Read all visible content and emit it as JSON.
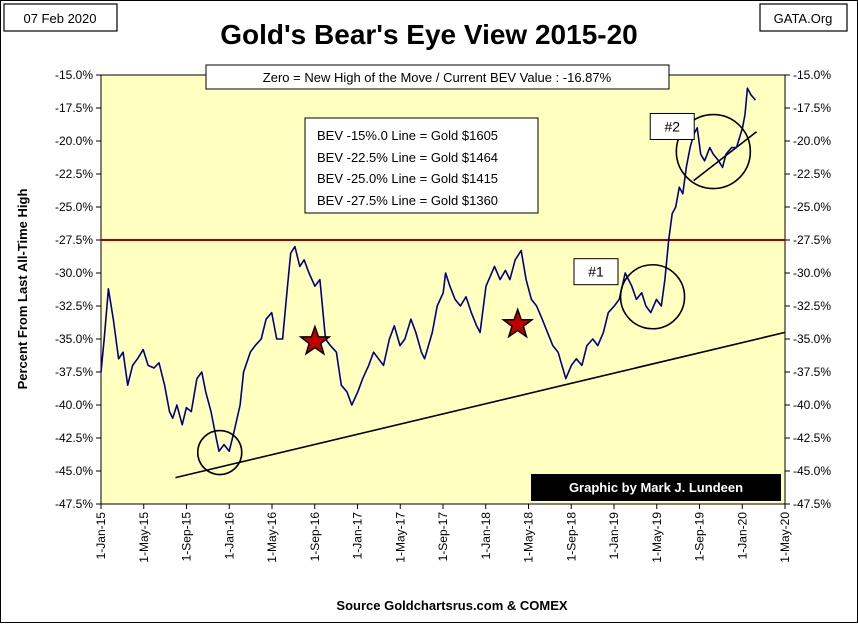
{
  "header": {
    "date_label": "07 Feb 2020",
    "source_tag": "GATA.Org",
    "title": "Gold's Bear's Eye View 2015-20",
    "subtitle": "Zero = New High of the Move / Current  BEV Value : -16.87%"
  },
  "footer": {
    "source": "Source Goldchartsrus.com & COMEX",
    "credit": "Graphic by Mark J. Lundeen"
  },
  "colors": {
    "plot_bg": "#ffffc0",
    "series_line": "#000080",
    "ref_line": "#a00000",
    "star_fill": "#c00000",
    "credit_bg": "#000000",
    "credit_text": "#ffffff"
  },
  "chart_data": {
    "type": "line",
    "title": "Gold's Bear's Eye View 2015-20",
    "ylabel": "Percent  From Last  All-Time High",
    "xlabel": "",
    "ylim": [
      -47.5,
      -15.0
    ],
    "xlim": [
      "2015-01-01",
      "2020-05-01"
    ],
    "y_ticks": [
      "-15.0%",
      "-17.5%",
      "-20.0%",
      "-22.5%",
      "-25.0%",
      "-27.5%",
      "-30.0%",
      "-32.5%",
      "-35.0%",
      "-37.5%",
      "-40.0%",
      "-42.5%",
      "-45.0%",
      "-47.5%"
    ],
    "x_ticks": [
      "1-Jan-15",
      "1-May-15",
      "1-Sep-15",
      "1-Jan-16",
      "1-May-16",
      "1-Sep-16",
      "1-Jan-17",
      "1-May-17",
      "1-Sep-17",
      "1-Jan-18",
      "1-May-18",
      "1-Sep-18",
      "1-Jan-19",
      "1-May-19",
      "1-Sep-19",
      "1-Jan-20",
      "1-May-20"
    ],
    "grid": false,
    "series": [
      {
        "x": [
          "2015-01-01",
          "2015-01-10",
          "2015-01-22",
          "2015-02-05",
          "2015-02-20",
          "2015-03-05",
          "2015-03-18",
          "2015-04-01",
          "2015-04-15",
          "2015-05-01",
          "2015-05-15",
          "2015-06-01",
          "2015-06-15",
          "2015-07-01",
          "2015-07-15",
          "2015-07-24",
          "2015-08-05",
          "2015-08-20",
          "2015-09-01",
          "2015-09-15",
          "2015-10-01",
          "2015-10-15",
          "2015-10-26",
          "2015-11-10",
          "2015-11-25",
          "2015-12-03",
          "2015-12-17",
          "2016-01-01",
          "2016-01-15",
          "2016-02-01",
          "2016-02-11",
          "2016-03-01",
          "2016-03-15",
          "2016-04-01",
          "2016-04-15",
          "2016-05-01",
          "2016-05-15",
          "2016-06-01",
          "2016-06-15",
          "2016-06-24",
          "2016-07-06",
          "2016-07-20",
          "2016-08-01",
          "2016-08-15",
          "2016-09-01",
          "2016-09-15",
          "2016-10-01",
          "2016-10-15",
          "2016-11-01",
          "2016-11-15",
          "2016-12-01",
          "2016-12-15",
          "2017-01-01",
          "2017-01-15",
          "2017-02-01",
          "2017-02-15",
          "2017-03-01",
          "2017-03-15",
          "2017-04-01",
          "2017-04-15",
          "2017-05-01",
          "2017-05-15",
          "2017-06-01",
          "2017-06-15",
          "2017-07-01",
          "2017-07-10",
          "2017-08-01",
          "2017-08-15",
          "2017-09-01",
          "2017-09-08",
          "2017-09-20",
          "2017-10-05",
          "2017-10-20",
          "2017-11-05",
          "2017-11-20",
          "2017-12-05",
          "2017-12-15",
          "2018-01-01",
          "2018-01-25",
          "2018-02-10",
          "2018-02-25",
          "2018-03-10",
          "2018-03-25",
          "2018-04-11",
          "2018-04-25",
          "2018-05-10",
          "2018-05-25",
          "2018-06-10",
          "2018-06-25",
          "2018-07-10",
          "2018-07-25",
          "2018-08-16",
          "2018-09-01",
          "2018-09-15",
          "2018-10-01",
          "2018-10-15",
          "2018-11-01",
          "2018-11-15",
          "2018-12-01",
          "2018-12-15",
          "2019-01-01",
          "2019-01-15",
          "2019-02-01",
          "2019-02-20",
          "2019-03-05",
          "2019-03-20",
          "2019-04-01",
          "2019-04-15",
          "2019-05-01",
          "2019-05-15",
          "2019-05-25",
          "2019-06-05",
          "2019-06-15",
          "2019-06-25",
          "2019-07-05",
          "2019-07-15",
          "2019-07-25",
          "2019-08-05",
          "2019-08-15",
          "2019-08-25",
          "2019-09-04",
          "2019-09-15",
          "2019-09-30",
          "2019-10-10",
          "2019-10-25",
          "2019-11-05",
          "2019-11-15",
          "2019-12-01",
          "2019-12-15",
          "2020-01-01",
          "2020-01-08",
          "2020-01-15",
          "2020-01-25",
          "2020-02-07"
        ],
        "values": [
          -37.5,
          -35.0,
          -31.2,
          -33.5,
          -36.5,
          -36.0,
          -38.5,
          -37.0,
          -36.5,
          -35.8,
          -37.0,
          -37.2,
          -36.8,
          -38.5,
          -40.5,
          -41.0,
          -40.0,
          -41.5,
          -40.2,
          -40.5,
          -38.0,
          -37.5,
          -39.0,
          -40.5,
          -42.5,
          -43.5,
          -43.0,
          -43.5,
          -42.0,
          -40.0,
          -37.5,
          -36.0,
          -35.5,
          -35.0,
          -33.5,
          -33.0,
          -35.0,
          -35.0,
          -31.0,
          -28.5,
          -28.0,
          -29.5,
          -29.0,
          -30.0,
          -31.0,
          -30.5,
          -35.0,
          -35.5,
          -36.0,
          -38.5,
          -39.0,
          -40.0,
          -39.0,
          -38.0,
          -37.0,
          -36.0,
          -36.5,
          -37.0,
          -35.0,
          -34.0,
          -35.5,
          -35.0,
          -33.5,
          -34.5,
          -36.0,
          -36.5,
          -34.5,
          -32.5,
          -31.5,
          -30.0,
          -31.0,
          -32.0,
          -32.5,
          -31.8,
          -33.0,
          -34.0,
          -34.5,
          -31.0,
          -29.5,
          -30.5,
          -29.8,
          -30.5,
          -29.0,
          -28.3,
          -30.5,
          -32.0,
          -32.5,
          -33.5,
          -34.5,
          -35.5,
          -36.0,
          -38.0,
          -37.0,
          -36.5,
          -37.0,
          -35.5,
          -35.0,
          -35.5,
          -34.5,
          -33.0,
          -32.5,
          -32.0,
          -30.0,
          -31.0,
          -32.0,
          -31.5,
          -32.5,
          -33.0,
          -32.0,
          -32.5,
          -30.5,
          -27.5,
          -25.5,
          -25.0,
          -23.5,
          -24.0,
          -22.0,
          -20.5,
          -19.5,
          -19.0,
          -21.0,
          -21.5,
          -20.5,
          -21.0,
          -21.5,
          -22.0,
          -21.0,
          -20.5,
          -20.5,
          -19.0,
          -18.0,
          -16.0,
          -16.5,
          -16.9
        ]
      }
    ],
    "reference_line": {
      "y": -27.5
    },
    "trend_lines": [
      {
        "x": [
          "2015-08-01",
          "2020-05-01"
        ],
        "y": [
          -45.5,
          -34.5
        ]
      },
      {
        "x": [
          "2019-08-15",
          "2020-02-10"
        ],
        "y": [
          -23.0,
          -19.3
        ]
      }
    ],
    "stars": [
      {
        "x": "2016-09-01",
        "y": -35.2
      },
      {
        "x": "2018-04-01",
        "y": -33.9
      }
    ],
    "circles": [
      {
        "x": "2015-12-05",
        "y": -43.6
      },
      {
        "x": "2019-04-20",
        "y": -31.8
      },
      {
        "x": "2019-10-10",
        "y": -20.8
      }
    ],
    "annotations": [
      {
        "label": "#1",
        "x": "2018-11-10",
        "y": -29.9
      },
      {
        "label": "#2",
        "x": "2019-06-15",
        "y": -18.9
      }
    ],
    "info_box": [
      "BEV -15%.0 Line = Gold $1605",
      "BEV -22.5% Line = Gold $1464",
      "BEV -25.0% Line = Gold $1415",
      "BEV -27.5% Line = Gold $1360"
    ]
  }
}
